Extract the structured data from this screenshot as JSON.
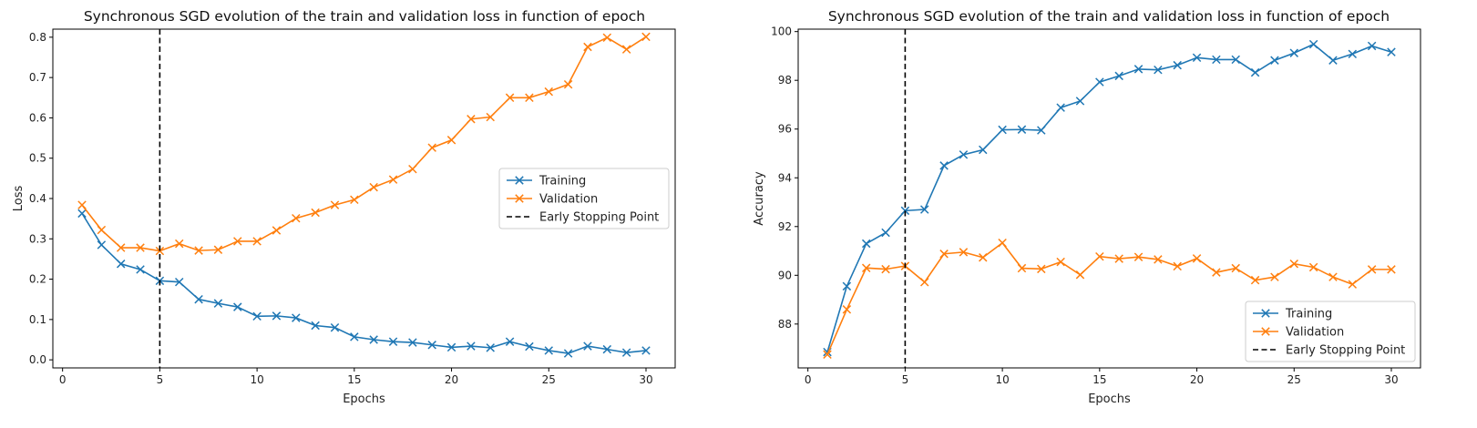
{
  "chart_data": [
    {
      "type": "line",
      "title": "Synchronous SGD evolution of the train and validation loss in function of epoch",
      "xlabel": "Epochs",
      "ylabel": "Loss",
      "xlim": [
        -0.5,
        31.5
      ],
      "ylim": [
        -0.02,
        0.82
      ],
      "xticks": [
        0,
        5,
        10,
        15,
        20,
        25,
        30
      ],
      "yticks": [
        0.0,
        0.1,
        0.2,
        0.3,
        0.4,
        0.5,
        0.6,
        0.7,
        0.8
      ],
      "ytick_labels": [
        "0.0",
        "0.1",
        "0.2",
        "0.3",
        "0.4",
        "0.5",
        "0.6",
        "0.7",
        "0.8"
      ],
      "grid": false,
      "legend_position": "center-right",
      "early_stopping_x": 5,
      "x": [
        1,
        2,
        3,
        4,
        5,
        6,
        7,
        8,
        9,
        10,
        11,
        12,
        13,
        14,
        15,
        16,
        17,
        18,
        19,
        20,
        21,
        22,
        23,
        24,
        25,
        26,
        27,
        28,
        29,
        30
      ],
      "series": [
        {
          "name": "Training",
          "color": "#1f77b4",
          "marker": "x",
          "values": [
            0.363,
            0.285,
            0.238,
            0.224,
            0.196,
            0.193,
            0.15,
            0.14,
            0.131,
            0.108,
            0.109,
            0.104,
            0.085,
            0.08,
            0.057,
            0.05,
            0.045,
            0.043,
            0.037,
            0.031,
            0.034,
            0.03,
            0.045,
            0.033,
            0.023,
            0.016,
            0.034,
            0.026,
            0.018,
            0.023
          ]
        },
        {
          "name": "Validation",
          "color": "#ff7f0e",
          "marker": "x",
          "values": [
            0.384,
            0.322,
            0.278,
            0.278,
            0.27,
            0.288,
            0.271,
            0.273,
            0.294,
            0.294,
            0.321,
            0.351,
            0.365,
            0.384,
            0.397,
            0.428,
            0.447,
            0.473,
            0.526,
            0.545,
            0.597,
            0.602,
            0.65,
            0.65,
            0.665,
            0.683,
            0.776,
            0.799,
            0.77,
            0.801
          ]
        }
      ],
      "legend": [
        "Training",
        "Validation",
        "Early Stopping Point"
      ]
    },
    {
      "type": "line",
      "title": "Synchronous SGD evolution of the train and validation loss in function of epoch",
      "xlabel": "Epochs",
      "ylabel": "Accuracy",
      "xlim": [
        -0.5,
        31.5
      ],
      "ylim": [
        86.2,
        100.1
      ],
      "xticks": [
        0,
        5,
        10,
        15,
        20,
        25,
        30
      ],
      "yticks": [
        88,
        90,
        92,
        94,
        96,
        98,
        100
      ],
      "ytick_labels": [
        "88",
        "90",
        "92",
        "94",
        "96",
        "98",
        "100"
      ],
      "grid": false,
      "legend_position": "lower-right",
      "early_stopping_x": 5,
      "x": [
        1,
        2,
        3,
        4,
        5,
        6,
        7,
        8,
        9,
        10,
        11,
        12,
        13,
        14,
        15,
        16,
        17,
        18,
        19,
        20,
        21,
        22,
        23,
        24,
        25,
        26,
        27,
        28,
        29,
        30
      ],
      "series": [
        {
          "name": "Training",
          "color": "#1f77b4",
          "marker": "x",
          "values": [
            86.85,
            89.55,
            91.3,
            91.75,
            92.65,
            92.7,
            94.5,
            94.95,
            95.15,
            95.97,
            95.98,
            95.95,
            96.88,
            97.15,
            97.93,
            98.18,
            98.46,
            98.43,
            98.62,
            98.93,
            98.85,
            98.85,
            98.32,
            98.82,
            99.12,
            99.48,
            98.82,
            99.08,
            99.41,
            99.16
          ]
        },
        {
          "name": "Validation",
          "color": "#ff7f0e",
          "marker": "x",
          "values": [
            86.75,
            88.6,
            90.3,
            90.25,
            90.38,
            89.72,
            90.88,
            90.95,
            90.73,
            91.33,
            90.29,
            90.26,
            90.55,
            90.02,
            90.77,
            90.68,
            90.75,
            90.65,
            90.37,
            90.69,
            90.12,
            90.29,
            89.8,
            89.93,
            90.47,
            90.33,
            89.93,
            89.63,
            90.24,
            90.24
          ]
        }
      ],
      "legend": [
        "Training",
        "Validation",
        "Early Stopping Point"
      ]
    }
  ]
}
